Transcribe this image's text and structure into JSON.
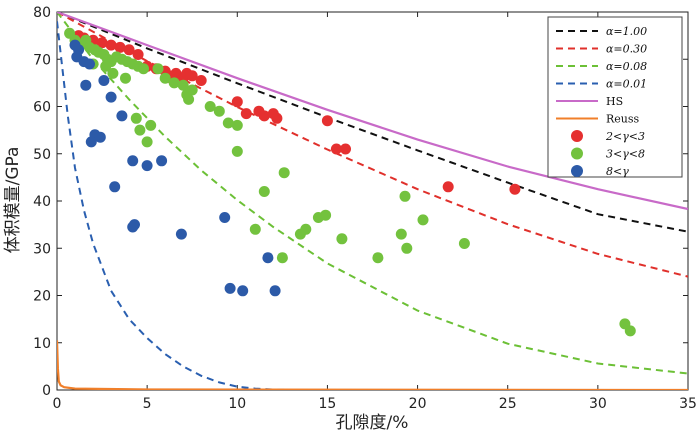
{
  "chart_data": {
    "type": "scatter",
    "title": "",
    "xlabel": "孔隙度/%",
    "ylabel": "体积模量/GPa",
    "xlim": [
      0,
      35
    ],
    "ylim": [
      0,
      80
    ],
    "xticks": [
      0,
      5,
      10,
      15,
      20,
      25,
      30,
      35
    ],
    "yticks": [
      0,
      10,
      20,
      30,
      40,
      50,
      60,
      70,
      80
    ],
    "legend_position": "top-right",
    "lines": [
      {
        "name": "α=1.00",
        "label": "α=1.00",
        "color": "#111111",
        "style": "dashed",
        "x": [
          0,
          5,
          10,
          15,
          20,
          25,
          30,
          35
        ],
        "y": [
          80,
          72.3,
          64.9,
          57.7,
          50.7,
          43.9,
          37.2,
          33.5
        ]
      },
      {
        "name": "α=0.30",
        "label": "α=0.30",
        "color": "#e0302b",
        "style": "dashed",
        "x": [
          0,
          5,
          10,
          15,
          20,
          25,
          30,
          35
        ],
        "y": [
          80,
          69.6,
          59.9,
          50.9,
          42.5,
          35.1,
          28.8,
          24
        ]
      },
      {
        "name": "α=0.08",
        "label": "α=0.08",
        "color": "#6cc036",
        "style": "dashed",
        "x": [
          0,
          2,
          4,
          6,
          8,
          10,
          12,
          15,
          20,
          25,
          30,
          35
        ],
        "y": [
          80,
          70,
          61.5,
          53.6,
          46.5,
          40.2,
          34.5,
          26.8,
          16.8,
          9.8,
          5.6,
          3.5
        ]
      },
      {
        "name": "α=0.01",
        "label": "α=0.01",
        "color": "#2a5fb0",
        "style": "dashed",
        "x": [
          0,
          0.3,
          0.6,
          1,
          1.5,
          2,
          3,
          4,
          5,
          6,
          7,
          8,
          9,
          10,
          11,
          12,
          13,
          14,
          15,
          17,
          20,
          25,
          30,
          35
        ],
        "y": [
          78,
          68,
          58,
          47,
          38,
          31,
          21,
          15,
          11,
          7.6,
          5,
          3,
          1.6,
          0.7,
          0.3,
          0.1,
          0,
          0,
          0,
          0,
          0,
          0,
          0,
          0
        ]
      },
      {
        "name": "HS",
        "label": "HS",
        "color": "#c86ac8",
        "style": "solid",
        "x": [
          0,
          5,
          10,
          15,
          20,
          25,
          30,
          35
        ],
        "y": [
          80,
          73,
          66,
          59.3,
          53,
          47.3,
          42.5,
          38.3
        ]
      },
      {
        "name": "Reuss",
        "label": "Reuss",
        "color": "#f07f2a",
        "style": "solid",
        "x": [
          0,
          0.05,
          0.1,
          0.2,
          0.4,
          1,
          5,
          35
        ],
        "y": [
          10.5,
          4.5,
          1.8,
          1.0,
          0.6,
          0.3,
          0.1,
          0
        ]
      }
    ],
    "series": [
      {
        "name": "2<γ<3",
        "label": "2<γ<3",
        "color": "#e53030",
        "points": [
          [
            1.2,
            75
          ],
          [
            1.5,
            74.5
          ],
          [
            2,
            74
          ],
          [
            2.5,
            73.5
          ],
          [
            3,
            73
          ],
          [
            3.5,
            72.5
          ],
          [
            4,
            72
          ],
          [
            4.5,
            71
          ],
          [
            5,
            68.5
          ],
          [
            5.5,
            68
          ],
          [
            6,
            67.5
          ],
          [
            6.2,
            66.5
          ],
          [
            6.4,
            65.8
          ],
          [
            6.6,
            67
          ],
          [
            6.8,
            65.5
          ],
          [
            7,
            66
          ],
          [
            7.2,
            67
          ],
          [
            7.5,
            66.5
          ],
          [
            8,
            65.5
          ],
          [
            10,
            61
          ],
          [
            10.5,
            58.5
          ],
          [
            11.2,
            59
          ],
          [
            11.5,
            58
          ],
          [
            12,
            58.5
          ],
          [
            12.2,
            57.5
          ],
          [
            15,
            57
          ],
          [
            15.5,
            51
          ],
          [
            16,
            51
          ],
          [
            21.7,
            43
          ],
          [
            25.4,
            42.5
          ]
        ]
      },
      {
        "name": "3<γ<8",
        "label": "3<γ<8",
        "color": "#73c23e",
        "points": [
          [
            0.7,
            75.5
          ],
          [
            1,
            74
          ],
          [
            1.3,
            73
          ],
          [
            1.6,
            74
          ],
          [
            1.8,
            72.5
          ],
          [
            2.1,
            72
          ],
          [
            2.3,
            71.5
          ],
          [
            2.6,
            71
          ],
          [
            2.8,
            70
          ],
          [
            3,
            69.5
          ],
          [
            3.3,
            70.5
          ],
          [
            3.6,
            70
          ],
          [
            3.9,
            69.5
          ],
          [
            4.2,
            69
          ],
          [
            4.5,
            68.5
          ],
          [
            4.8,
            68
          ],
          [
            2,
            69
          ],
          [
            2.7,
            68.5
          ],
          [
            3.1,
            67
          ],
          [
            3.8,
            66
          ],
          [
            4.4,
            57.5
          ],
          [
            4.6,
            55
          ],
          [
            5,
            52.5
          ],
          [
            5.2,
            56
          ],
          [
            5.6,
            68
          ],
          [
            6,
            66
          ],
          [
            6.5,
            65
          ],
          [
            7,
            64.5
          ],
          [
            7.2,
            62.5
          ],
          [
            7.5,
            63.5
          ],
          [
            7.3,
            61.5
          ],
          [
            8.5,
            60
          ],
          [
            9,
            59
          ],
          [
            9.5,
            56.5
          ],
          [
            10,
            56
          ],
          [
            10,
            50.5
          ],
          [
            11.5,
            42
          ],
          [
            12.6,
            46
          ],
          [
            12.5,
            28
          ],
          [
            11,
            34
          ],
          [
            13.5,
            33
          ],
          [
            13.8,
            34
          ],
          [
            14.5,
            36.5
          ],
          [
            14.9,
            37
          ],
          [
            15.8,
            32
          ],
          [
            17.8,
            28
          ],
          [
            19.1,
            33
          ],
          [
            19.3,
            41
          ],
          [
            19.4,
            30
          ],
          [
            20.3,
            36
          ],
          [
            22.6,
            31
          ],
          [
            31.5,
            14
          ],
          [
            31.8,
            12.5
          ]
        ]
      },
      {
        "name": "8<γ",
        "label": "8<γ",
        "color": "#2c5aa8",
        "points": [
          [
            1,
            73
          ],
          [
            1.2,
            72
          ],
          [
            1.1,
            70.5
          ],
          [
            1.5,
            69.5
          ],
          [
            1.8,
            69
          ],
          [
            1.6,
            64.5
          ],
          [
            2.6,
            65.5
          ],
          [
            3,
            62
          ],
          [
            3.6,
            58
          ],
          [
            2.1,
            54
          ],
          [
            2.4,
            53.5
          ],
          [
            1.9,
            52.5
          ],
          [
            4.2,
            48.5
          ],
          [
            5,
            47.5
          ],
          [
            5.8,
            48.5
          ],
          [
            3.2,
            43
          ],
          [
            4.3,
            35
          ],
          [
            4.2,
            34.5
          ],
          [
            6.9,
            33
          ],
          [
            9.3,
            36.5
          ],
          [
            11.7,
            28
          ],
          [
            9.6,
            21.5
          ],
          [
            10.3,
            21
          ],
          [
            12.1,
            21
          ]
        ]
      }
    ]
  }
}
